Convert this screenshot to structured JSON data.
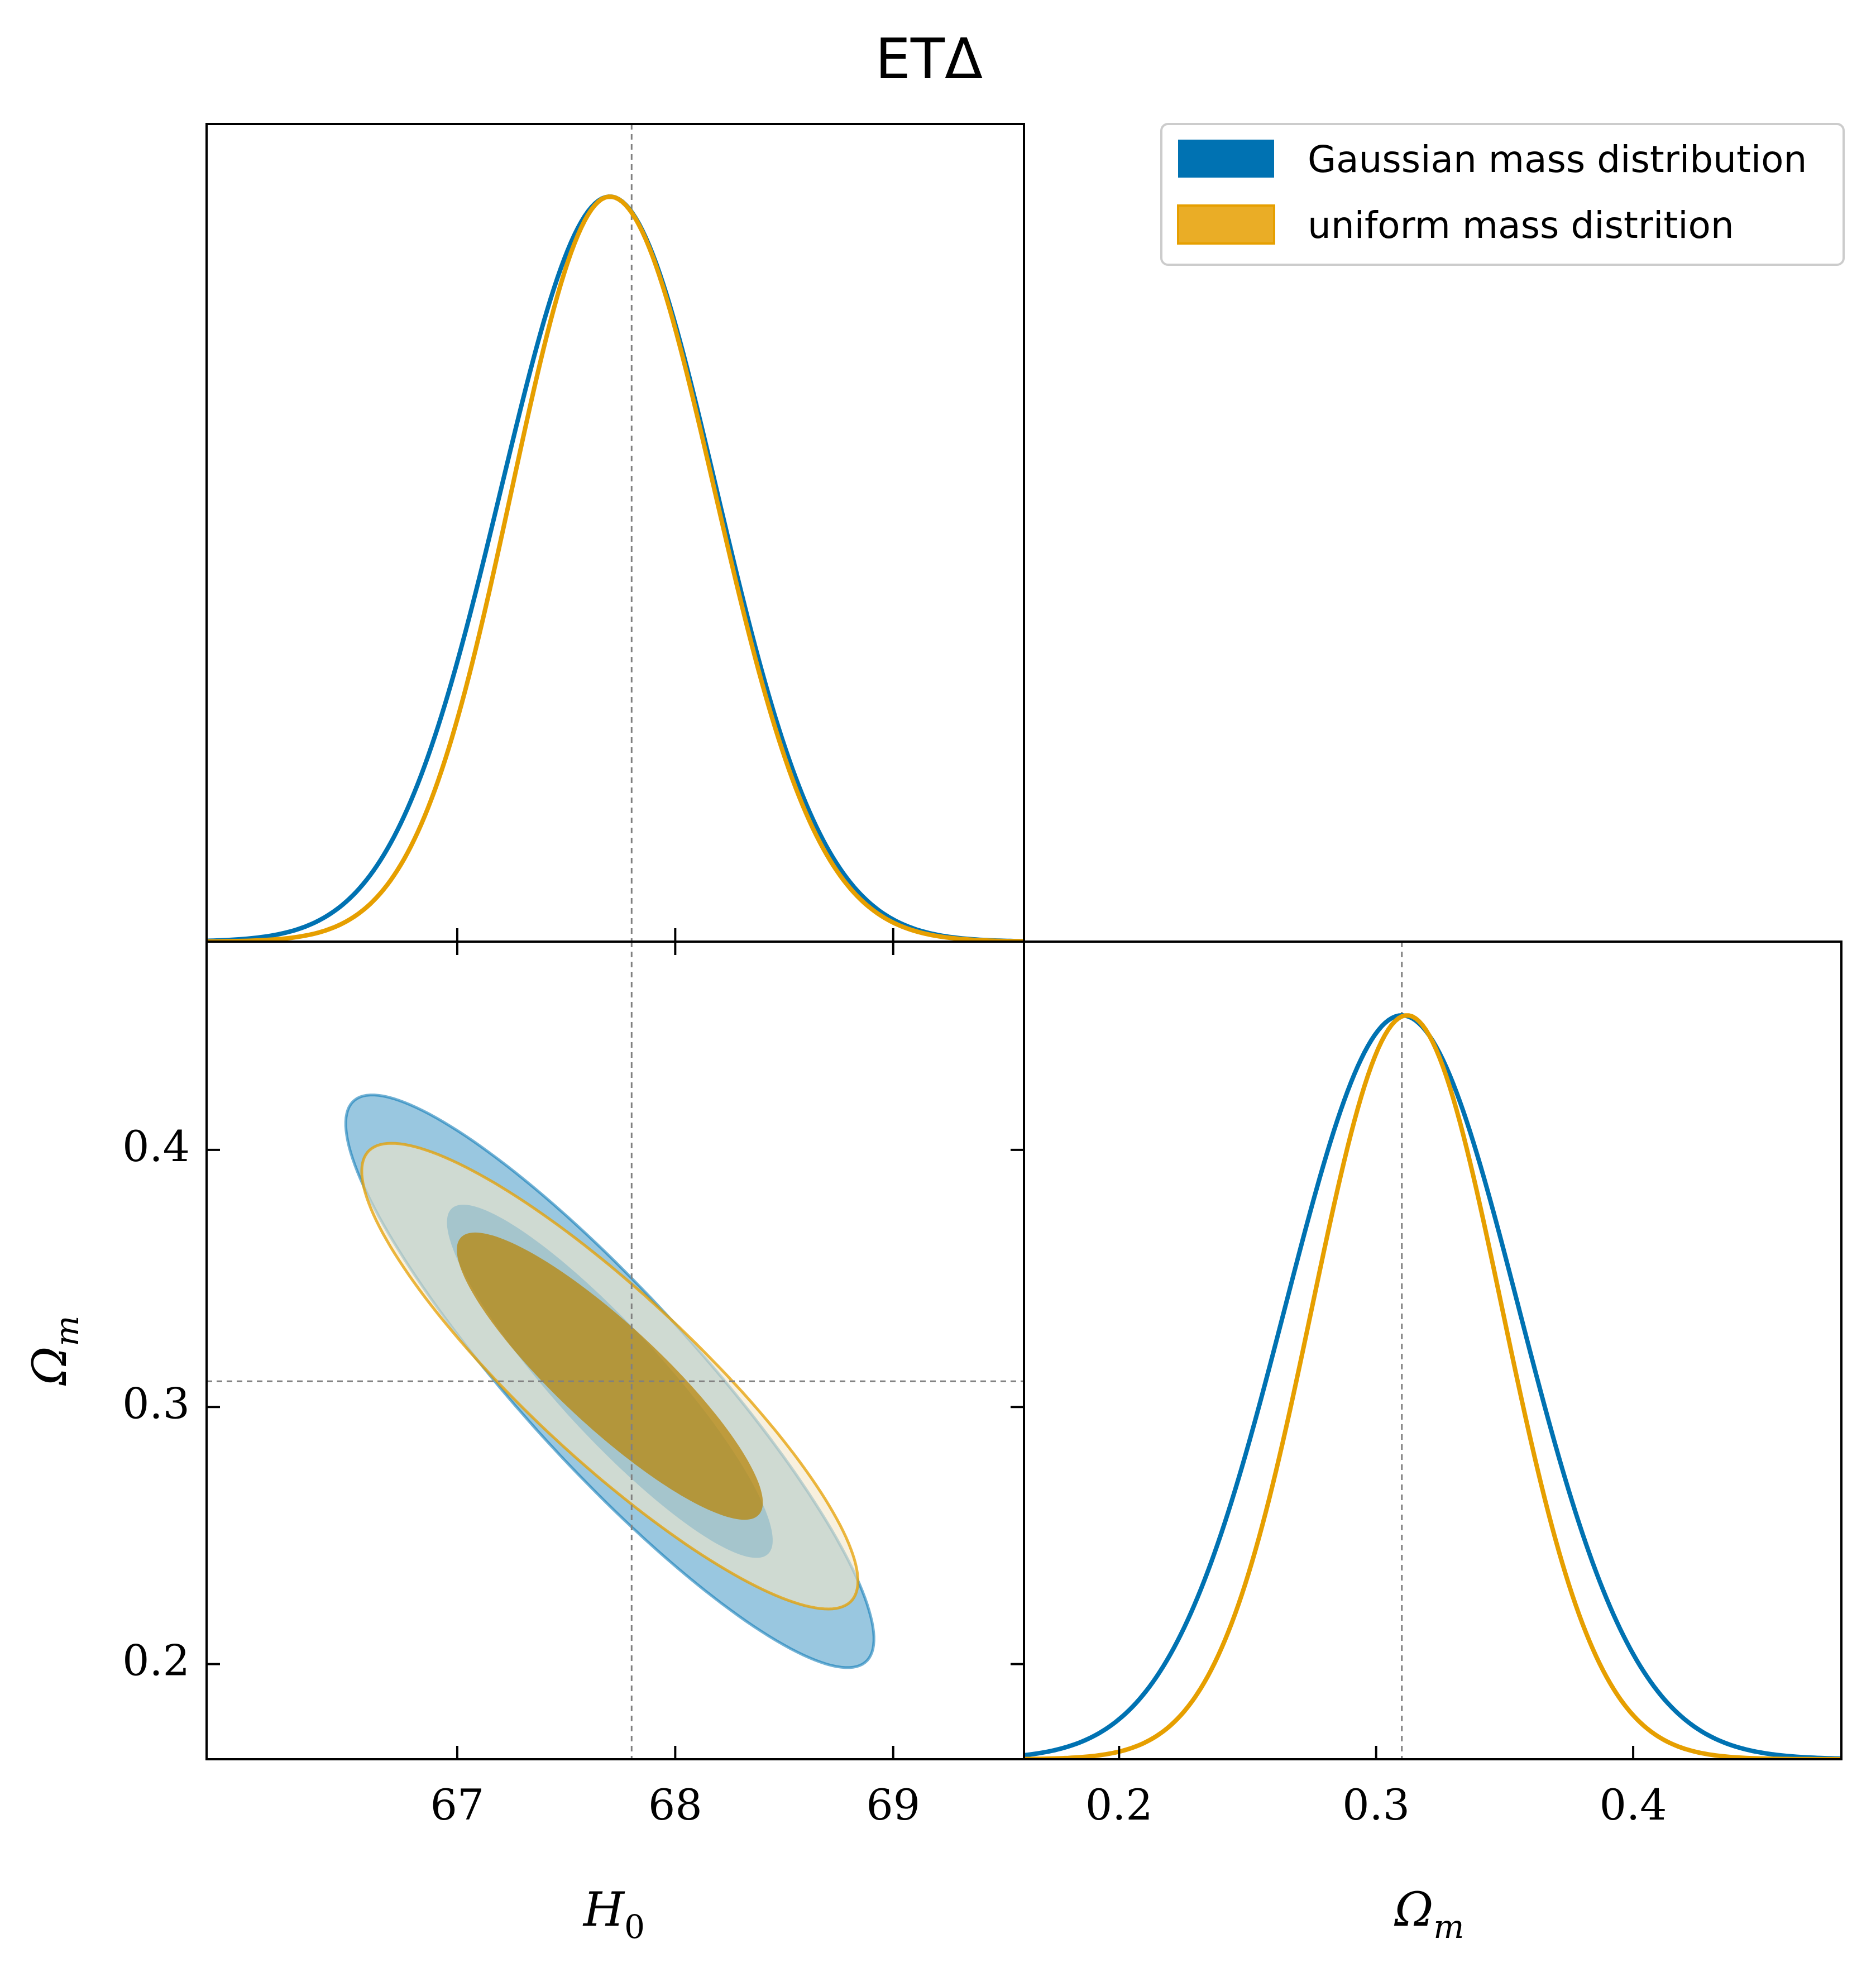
{
  "colors": {
    "gaussian": "#0072b2",
    "uniform": "#e69f00",
    "truth_line": "#808080"
  },
  "chart_data": {
    "type": "corner",
    "title": "ETΔ",
    "parameters": [
      {
        "name": "H0",
        "label": "H",
        "label_sub": "0",
        "range": [
          65.85,
          69.6
        ],
        "ticks": [
          67,
          68,
          69
        ],
        "tick_labels": [
          "67",
          "68",
          "69"
        ],
        "truth": 67.8
      },
      {
        "name": "Omega_m",
        "label": "Ω",
        "label_sub": "m",
        "range": [
          0.163,
          0.481
        ],
        "ticks": [
          0.2,
          0.3,
          0.4
        ],
        "tick_labels": [
          "0.2",
          "0.3",
          "0.4"
        ],
        "truth": 0.31
      }
    ],
    "legend": {
      "position": "top-right",
      "entries": [
        "Gaussian mass distribution",
        "uniform mass distrition"
      ]
    },
    "series": [
      {
        "name": "Gaussian mass distribution",
        "H0": {
          "mean": 67.7,
          "sigma_left": 0.5,
          "sigma_right": 0.49
        },
        "Omega_m": {
          "mean": 0.31,
          "sigma_left": 0.0455,
          "sigma_right": 0.0455
        },
        "correlation": -0.9,
        "contour_levels": [
          "68%",
          "95%"
        ]
      },
      {
        "name": "uniform mass distrition",
        "H0": {
          "mean": 67.7,
          "sigma_left": 0.45,
          "sigma_right": 0.48
        },
        "Omega_m": {
          "mean": 0.312,
          "sigma_left": 0.037,
          "sigma_right": 0.037
        },
        "correlation": -0.88,
        "contour_levels": [
          "68%",
          "95%"
        ]
      }
    ]
  }
}
